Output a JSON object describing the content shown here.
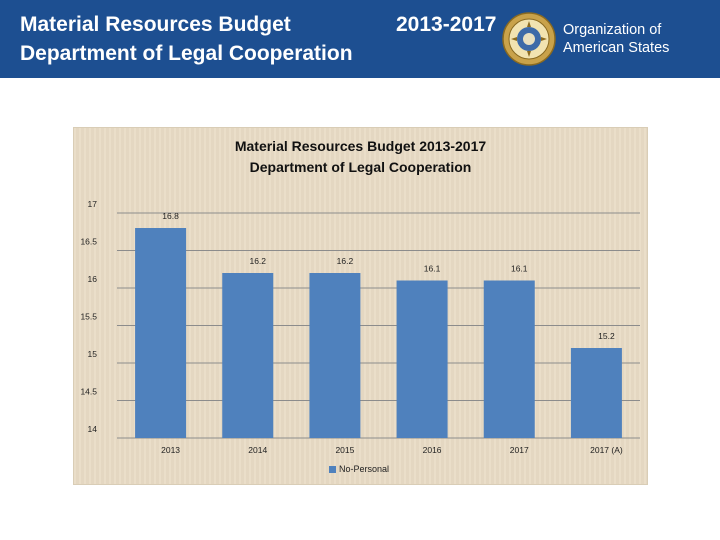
{
  "header": {
    "title_line1": "Material Resources Budget",
    "title_line2": "Department of Legal Cooperation",
    "years": "2013-2017",
    "org_line1": "Organization of",
    "org_line2": "American States",
    "seal_icon": "oas-seal-icon"
  },
  "colors": {
    "header_bg": "#1d4f91",
    "bar": "#4f81bd",
    "chart_bg": "#e9dcc6"
  },
  "chart_data": {
    "type": "bar",
    "title_line1": "Material Resources Budget 2013-2017",
    "title_line2": "Department of Legal Cooperation",
    "categories": [
      "2013",
      "2014",
      "2015",
      "2016",
      "2017",
      "2017 (A)"
    ],
    "series": [
      {
        "name": "No-Personal",
        "values": [
          16.8,
          16.2,
          16.2,
          16.1,
          16.1,
          15.2
        ]
      }
    ],
    "data_labels": [
      "16.8",
      "16.2",
      "16.2",
      "16.1",
      "16.1",
      "15.2"
    ],
    "yticks": [
      "14",
      "14.5",
      "15",
      "15.5",
      "16",
      "16.5",
      "17"
    ],
    "ylim": [
      14,
      17
    ],
    "grid": true,
    "legend_position": "bottom",
    "xlabel": "",
    "ylabel": ""
  }
}
